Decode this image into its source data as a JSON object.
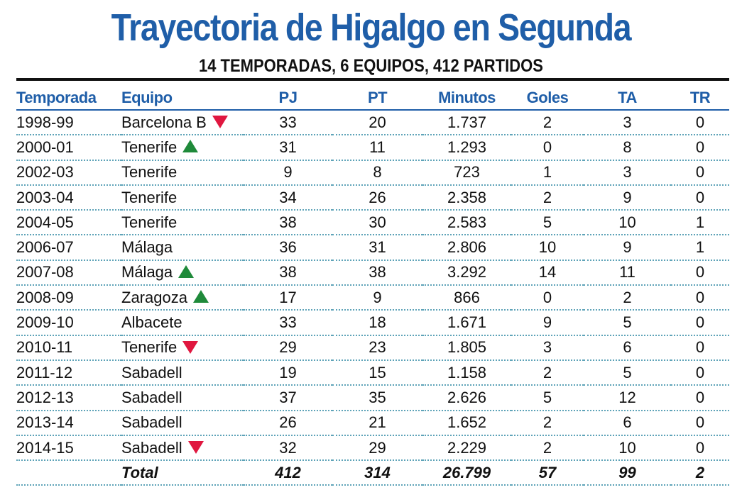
{
  "title": "Trayectoria de Higalgo en Segunda",
  "subtitle": "14 TEMPORADAS, 6 EQUIPOS, 412 PARTIDOS",
  "colors": {
    "title": "#1f5ea8",
    "down_arrow": "#e0173f",
    "up_arrow": "#1f8a3a"
  },
  "headers": [
    "Temporada",
    "Equipo",
    "PJ",
    "PT",
    "Minutos",
    "Goles",
    "TA",
    "TR"
  ],
  "rows": [
    {
      "temporada": "1998-99",
      "equipo": "Barcelona B",
      "arrow": "down",
      "pj": "33",
      "pt": "20",
      "minutos": "1.737",
      "goles": "2",
      "ta": "3",
      "tr": "0"
    },
    {
      "temporada": "2000-01",
      "equipo": "Tenerife",
      "arrow": "up",
      "pj": "31",
      "pt": "11",
      "minutos": "1.293",
      "goles": "0",
      "ta": "8",
      "tr": "0"
    },
    {
      "temporada": "2002-03",
      "equipo": "Tenerife",
      "arrow": "",
      "pj": "9",
      "pt": "8",
      "minutos": "723",
      "goles": "1",
      "ta": "3",
      "tr": "0"
    },
    {
      "temporada": "2003-04",
      "equipo": "Tenerife",
      "arrow": "",
      "pj": "34",
      "pt": "26",
      "minutos": "2.358",
      "goles": "2",
      "ta": "9",
      "tr": "0"
    },
    {
      "temporada": "2004-05",
      "equipo": "Tenerife",
      "arrow": "",
      "pj": "38",
      "pt": "30",
      "minutos": "2.583",
      "goles": "5",
      "ta": "10",
      "tr": "1"
    },
    {
      "temporada": "2006-07",
      "equipo": "Málaga",
      "arrow": "",
      "pj": "36",
      "pt": "31",
      "minutos": "2.806",
      "goles": "10",
      "ta": "9",
      "tr": "1"
    },
    {
      "temporada": "2007-08",
      "equipo": "Málaga",
      "arrow": "up",
      "pj": "38",
      "pt": "38",
      "minutos": "3.292",
      "goles": "14",
      "ta": "11",
      "tr": "0"
    },
    {
      "temporada": "2008-09",
      "equipo": "Zaragoza",
      "arrow": "up",
      "pj": "17",
      "pt": "9",
      "minutos": "866",
      "goles": "0",
      "ta": "2",
      "tr": "0"
    },
    {
      "temporada": "2009-10",
      "equipo": "Albacete",
      "arrow": "",
      "pj": "33",
      "pt": "18",
      "minutos": "1.671",
      "goles": "9",
      "ta": "5",
      "tr": "0"
    },
    {
      "temporada": "2010-11",
      "equipo": "Tenerife",
      "arrow": "down",
      "pj": "29",
      "pt": "23",
      "minutos": "1.805",
      "goles": "3",
      "ta": "6",
      "tr": "0"
    },
    {
      "temporada": "2011-12",
      "equipo": "Sabadell",
      "arrow": "",
      "pj": "19",
      "pt": "15",
      "minutos": "1.158",
      "goles": "2",
      "ta": "5",
      "tr": "0"
    },
    {
      "temporada": "2012-13",
      "equipo": "Sabadell",
      "arrow": "",
      "pj": "37",
      "pt": "35",
      "minutos": "2.626",
      "goles": "5",
      "ta": "12",
      "tr": "0"
    },
    {
      "temporada": "2013-14",
      "equipo": "Sabadell",
      "arrow": "",
      "pj": "26",
      "pt": "21",
      "minutos": "1.652",
      "goles": "2",
      "ta": "6",
      "tr": "0"
    },
    {
      "temporada": "2014-15",
      "equipo": "Sabadell",
      "arrow": "down",
      "pj": "32",
      "pt": "29",
      "minutos": "2.229",
      "goles": "2",
      "ta": "10",
      "tr": "0"
    }
  ],
  "total": {
    "label": "Total",
    "pj": "412",
    "pt": "314",
    "minutos": "26.799",
    "goles": "57",
    "ta": "99",
    "tr": "2"
  }
}
